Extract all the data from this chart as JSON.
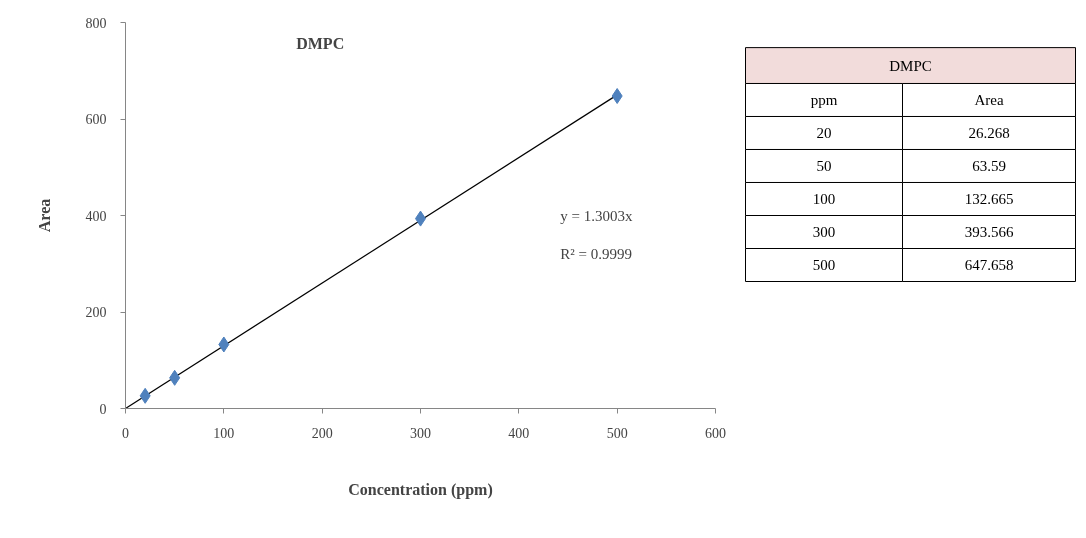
{
  "chart_data": [
    {
      "type": "scatter",
      "title": "DMPC",
      "xlabel": "Concentration (ppm)",
      "ylabel": "Area",
      "x": [
        20,
        50,
        100,
        300,
        500
      ],
      "series": [
        {
          "color": "#4f81bd",
          "marker": "diamond",
          "values": [
            26.268,
            63.59,
            132.665,
            393.566,
            647.658
          ]
        },
        {
          "type": "line",
          "color": "#000000",
          "x": [
            0,
            500
          ],
          "values": [
            0,
            650
          ]
        }
      ],
      "xlim": [
        0,
        600
      ],
      "xticks": [
        0,
        100,
        200,
        300,
        400,
        500,
        600
      ],
      "ylim": [
        0,
        800
      ],
      "yticks": [
        0,
        200,
        400,
        600,
        800
      ],
      "grid": false,
      "annotations": [
        "y = 1.3003x",
        "R² = 0.9999"
      ]
    },
    {
      "type": "other",
      "title": "DMPC",
      "xlabel": "ppm",
      "ylabel": "Area",
      "categories": [
        "20",
        "50",
        "100",
        "300",
        "500"
      ],
      "values": [
        26.268,
        63.59,
        132.665,
        393.566,
        647.658
      ],
      "data_labels": true
    }
  ]
}
